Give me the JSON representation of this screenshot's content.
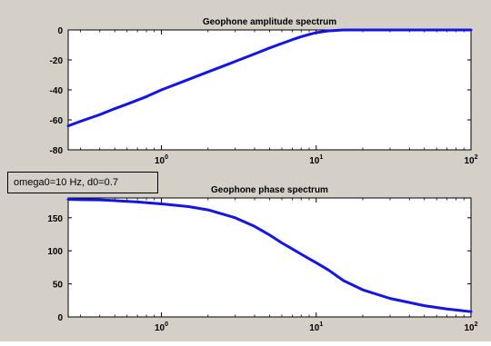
{
  "annotation": {
    "text": "omega0=10 Hz, d0=0.7"
  },
  "colors": {
    "figure_bg": "#d4d0c8",
    "axes_bg": "#ffffff",
    "line": "#1414e6"
  },
  "chart_data": [
    {
      "type": "line",
      "title": "Geophone amplitude spectrum",
      "xscale": "log",
      "xlim": [
        0.25,
        100
      ],
      "ylim": [
        -80,
        0
      ],
      "yticks": [
        0,
        -20,
        -40,
        -60,
        -80
      ],
      "ytick_labels": [
        "0",
        "-20",
        "-40",
        "-60",
        "-80"
      ],
      "xticks": [
        1,
        10,
        100
      ],
      "xtick_labels": [
        {
          "base": "10",
          "exp": "0"
        },
        {
          "base": "10",
          "exp": "1"
        },
        {
          "base": "10",
          "exp": "2"
        }
      ],
      "grid": false,
      "series": [
        {
          "x": [
            0.25,
            0.3,
            0.4,
            0.5,
            0.6,
            0.8,
            1,
            1.5,
            2,
            3,
            4,
            5,
            6,
            7,
            8,
            9,
            10,
            12,
            15,
            20,
            30,
            50,
            100
          ],
          "y": [
            -64,
            -61,
            -56.5,
            -52.5,
            -49.5,
            -44.5,
            -40,
            -33,
            -28,
            -21,
            -16,
            -12,
            -9,
            -6.5,
            -4.5,
            -3,
            -1.8,
            -0.6,
            0,
            0,
            0,
            0,
            0
          ]
        }
      ]
    },
    {
      "type": "line",
      "title": "Geophone phase spectrum",
      "xscale": "log",
      "xlim": [
        0.25,
        100
      ],
      "ylim": [
        0,
        180
      ],
      "yticks": [
        0,
        50,
        100,
        150
      ],
      "ytick_labels": [
        "0",
        "50",
        "100",
        "150"
      ],
      "xticks": [
        1,
        10,
        100
      ],
      "xtick_labels": [
        {
          "base": "10",
          "exp": "0"
        },
        {
          "base": "10",
          "exp": "1"
        },
        {
          "base": "10",
          "exp": "2"
        }
      ],
      "grid": false,
      "series": [
        {
          "x": [
            0.25,
            0.3,
            0.4,
            0.5,
            0.7,
            1,
            1.5,
            2,
            3,
            4,
            5,
            6,
            7,
            8,
            9,
            10,
            12,
            15,
            20,
            30,
            50,
            70,
            100
          ],
          "y": [
            178,
            177.5,
            177,
            176,
            174,
            171,
            167,
            162,
            150,
            137,
            124,
            112,
            103,
            95,
            88,
            82,
            71,
            55,
            41,
            28,
            17,
            12,
            8
          ]
        }
      ]
    }
  ]
}
